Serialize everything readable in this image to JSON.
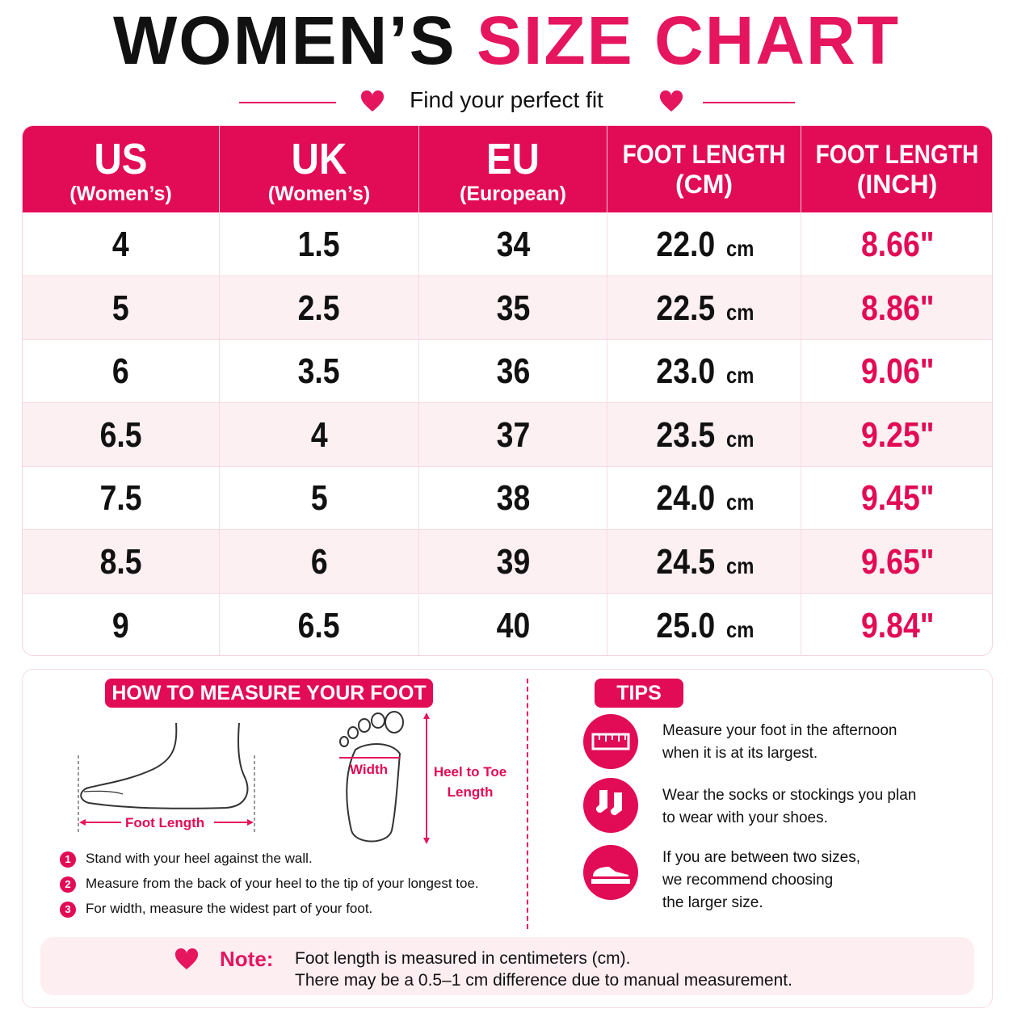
{
  "header": {
    "title_black": "WOMEN’S",
    "title_pink": "SIZE CHART",
    "subtitle": "Find your perfect fit"
  },
  "table": {
    "headers": [
      {
        "main": "US",
        "sub": "(Women’s)"
      },
      {
        "main": "UK",
        "sub": "(Women’s)"
      },
      {
        "main": "EU",
        "sub": "(European)"
      },
      {
        "main": "FOOT LENGTH",
        "sub": "(CM)"
      },
      {
        "main": "FOOT LENGTH",
        "sub": "(INCH)"
      }
    ],
    "rows": [
      [
        "4",
        "1.5",
        "34",
        "22.0",
        "cm",
        "8.66\""
      ],
      [
        "5",
        "2.5",
        "35",
        "22.5",
        "cm",
        "8.86\""
      ],
      [
        "6",
        "3.5",
        "36",
        "23.0",
        "cm",
        "9.06\""
      ],
      [
        "6.5",
        "4",
        "37",
        "23.5",
        "cm",
        "9.25\""
      ],
      [
        "7.5",
        "5",
        "38",
        "24.0",
        "cm",
        "9.45\""
      ],
      [
        "8.5",
        "6",
        "39",
        "24.5",
        "cm",
        "9.65\""
      ],
      [
        "9",
        "6.5",
        "40",
        "25.0",
        "cm",
        "9.84\""
      ]
    ]
  },
  "measure": {
    "heading": "HOW TO MEASURE YOUR FOOT",
    "foot_length_label": "Foot Length",
    "width_label": "Width",
    "heel_to_toe_label": [
      "Heel to Toe",
      "Length"
    ],
    "steps": [
      {
        "number": "1",
        "text": "Stand with your heel against the wall."
      },
      {
        "number": "2",
        "text": "Measure from the back of your heel to the tip of your longest toe."
      },
      {
        "number": "3",
        "text": "For width, measure the widest part of your foot."
      }
    ]
  },
  "tips": {
    "heading": "TIPS",
    "items": [
      [
        "Measure your foot in the afternoon",
        "when it is at its largest."
      ],
      [
        "Wear the socks or stockings you plan",
        "to wear with your shoes."
      ],
      [
        "If you are between two sizes,",
        "we recommend choosing",
        "the larger size."
      ]
    ]
  },
  "note": {
    "label": "Note:",
    "lines": [
      "Foot length is measured in centimeters (cm).",
      "There may be a 0.5–1 cm difference due to manual measurement."
    ]
  }
}
